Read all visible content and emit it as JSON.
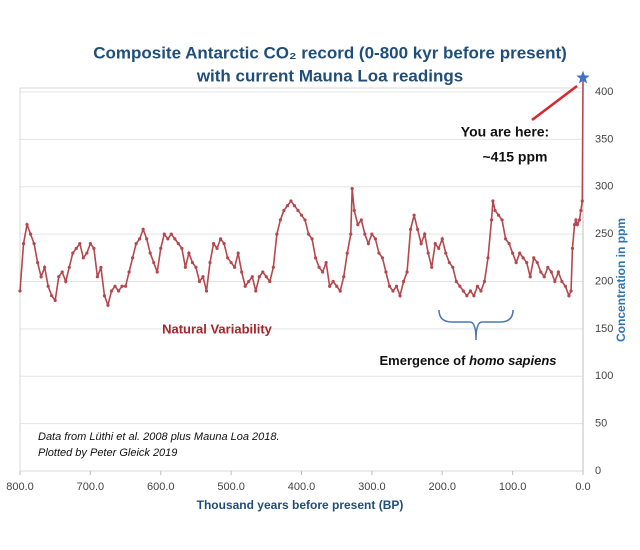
{
  "chart_data": {
    "type": "line",
    "title": [
      "Composite Antarctic CO₂ record (0-800 kyr before present)",
      "with current Mauna Loa readings"
    ],
    "x_label": "Thousand years before present (BP)",
    "y_label": "Concentration in ppm",
    "annotations": {
      "here": [
        "You are here:",
        "~415 ppm"
      ],
      "natural": "Natural Variability",
      "emergence": {
        "text": "Emergence of",
        "italic": "homo sapiens"
      },
      "source": [
        "Data from Lüthi et al. 2008 plus Mauna Loa 2018.",
        "Plotted by Peter Gleick 2019"
      ]
    },
    "xlim": [
      800,
      0
    ],
    "xticks": [
      {
        "value": 800,
        "label": "800.0"
      },
      {
        "value": 700,
        "label": "700.0"
      },
      {
        "value": 600,
        "label": "600.0"
      },
      {
        "value": 500,
        "label": "500.0"
      },
      {
        "value": 400,
        "label": "400.0"
      },
      {
        "value": 300,
        "label": "300.0"
      },
      {
        "value": 200,
        "label": "200.0"
      },
      {
        "value": 100,
        "label": "100.0"
      },
      {
        "value": 0,
        "label": "0.0"
      }
    ],
    "ylim": [
      0,
      400
    ],
    "yticks": [
      0,
      50,
      100,
      150,
      200,
      250,
      300,
      350,
      400
    ],
    "y_axis_side": "right",
    "grid": true,
    "series": [
      {
        "name": "CO2",
        "color": "#b5474e",
        "x": [
          800,
          795,
          790,
          785,
          780,
          775,
          770,
          765,
          760,
          755,
          750,
          745,
          740,
          735,
          730,
          725,
          720,
          715,
          710,
          705,
          700,
          695,
          690,
          685,
          680,
          675,
          670,
          665,
          660,
          655,
          650,
          645,
          640,
          635,
          630,
          625,
          620,
          615,
          610,
          605,
          600,
          595,
          590,
          585,
          580,
          575,
          570,
          565,
          560,
          555,
          550,
          545,
          540,
          535,
          530,
          525,
          520,
          515,
          510,
          505,
          500,
          495,
          490,
          485,
          480,
          475,
          470,
          465,
          460,
          455,
          450,
          445,
          440,
          435,
          430,
          425,
          420,
          415,
          410,
          405,
          400,
          395,
          390,
          385,
          380,
          375,
          370,
          365,
          360,
          355,
          350,
          345,
          340,
          335,
          330,
          328,
          325,
          320,
          315,
          310,
          305,
          300,
          295,
          290,
          285,
          280,
          275,
          270,
          265,
          260,
          255,
          250,
          245,
          240,
          235,
          230,
          225,
          220,
          215,
          210,
          205,
          200,
          195,
          190,
          185,
          180,
          175,
          170,
          165,
          160,
          155,
          150,
          145,
          140,
          135,
          130,
          128,
          125,
          120,
          115,
          110,
          105,
          100,
          95,
          90,
          85,
          80,
          75,
          70,
          65,
          60,
          55,
          50,
          45,
          40,
          35,
          30,
          25,
          20,
          17,
          15,
          12,
          10,
          8,
          5,
          3,
          1,
          0
        ],
        "values": [
          190,
          240,
          260,
          250,
          240,
          220,
          205,
          215,
          195,
          185,
          180,
          205,
          210,
          200,
          215,
          230,
          235,
          240,
          225,
          230,
          240,
          235,
          205,
          215,
          185,
          175,
          190,
          195,
          190,
          195,
          195,
          210,
          225,
          240,
          245,
          255,
          245,
          230,
          220,
          210,
          235,
          250,
          245,
          250,
          245,
          240,
          235,
          215,
          230,
          220,
          215,
          200,
          205,
          190,
          220,
          240,
          235,
          245,
          240,
          225,
          220,
          215,
          230,
          210,
          195,
          200,
          205,
          190,
          205,
          210,
          205,
          200,
          215,
          250,
          265,
          275,
          280,
          285,
          280,
          275,
          270,
          265,
          250,
          245,
          225,
          215,
          210,
          220,
          195,
          200,
          195,
          190,
          205,
          230,
          250,
          298,
          275,
          260,
          265,
          250,
          240,
          250,
          245,
          230,
          225,
          210,
          195,
          190,
          195,
          185,
          200,
          210,
          255,
          270,
          255,
          240,
          250,
          230,
          215,
          240,
          235,
          245,
          230,
          220,
          215,
          200,
          195,
          190,
          185,
          190,
          185,
          195,
          190,
          200,
          225,
          265,
          285,
          275,
          270,
          265,
          245,
          240,
          230,
          220,
          230,
          225,
          220,
          205,
          225,
          220,
          210,
          205,
          215,
          210,
          200,
          210,
          200,
          195,
          185,
          190,
          235,
          260,
          265,
          260,
          265,
          275,
          285,
          415
        ]
      }
    ]
  }
}
